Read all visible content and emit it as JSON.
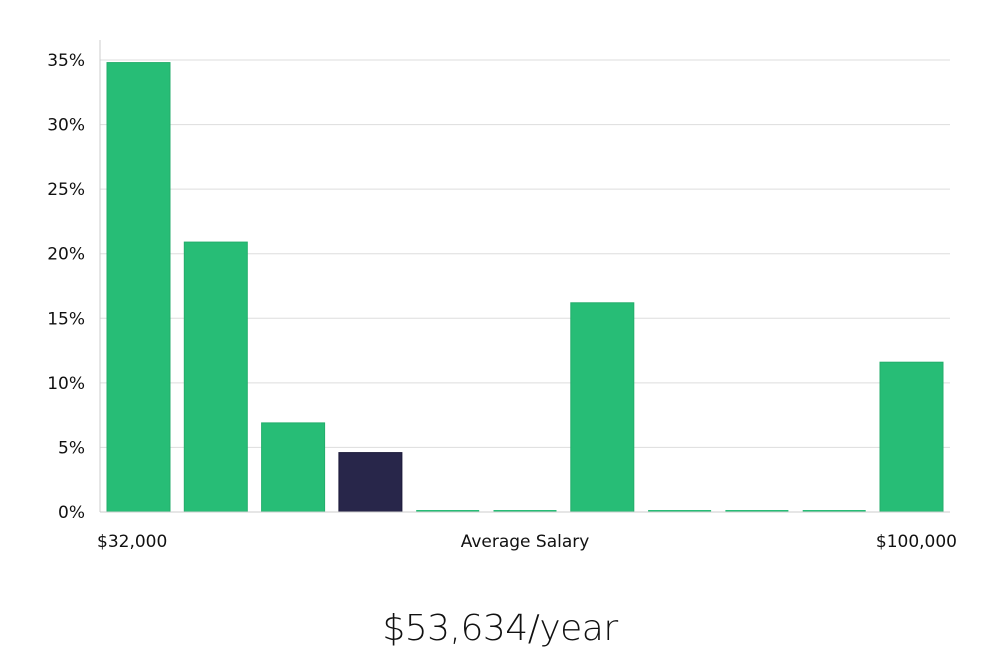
{
  "salary_display": "$53,634/year",
  "colors": {
    "bar": "#27bd76",
    "highlight": "#28264a",
    "grid": "#dddddd",
    "axis": "#cccccc"
  },
  "chart_data": {
    "type": "bar",
    "title": "",
    "xlabel": "Average Salary",
    "ylabel": "",
    "x_range_labels": [
      "$32,000",
      "$100,000"
    ],
    "y_ticks": [
      "0%",
      "5%",
      "10%",
      "15%",
      "20%",
      "25%",
      "30%",
      "35%"
    ],
    "ylim": [
      0,
      35
    ],
    "grid": true,
    "highlight_index": 3,
    "values": [
      34.8,
      20.9,
      6.9,
      4.6,
      0,
      0,
      16.2,
      0,
      0,
      0,
      11.6
    ]
  }
}
